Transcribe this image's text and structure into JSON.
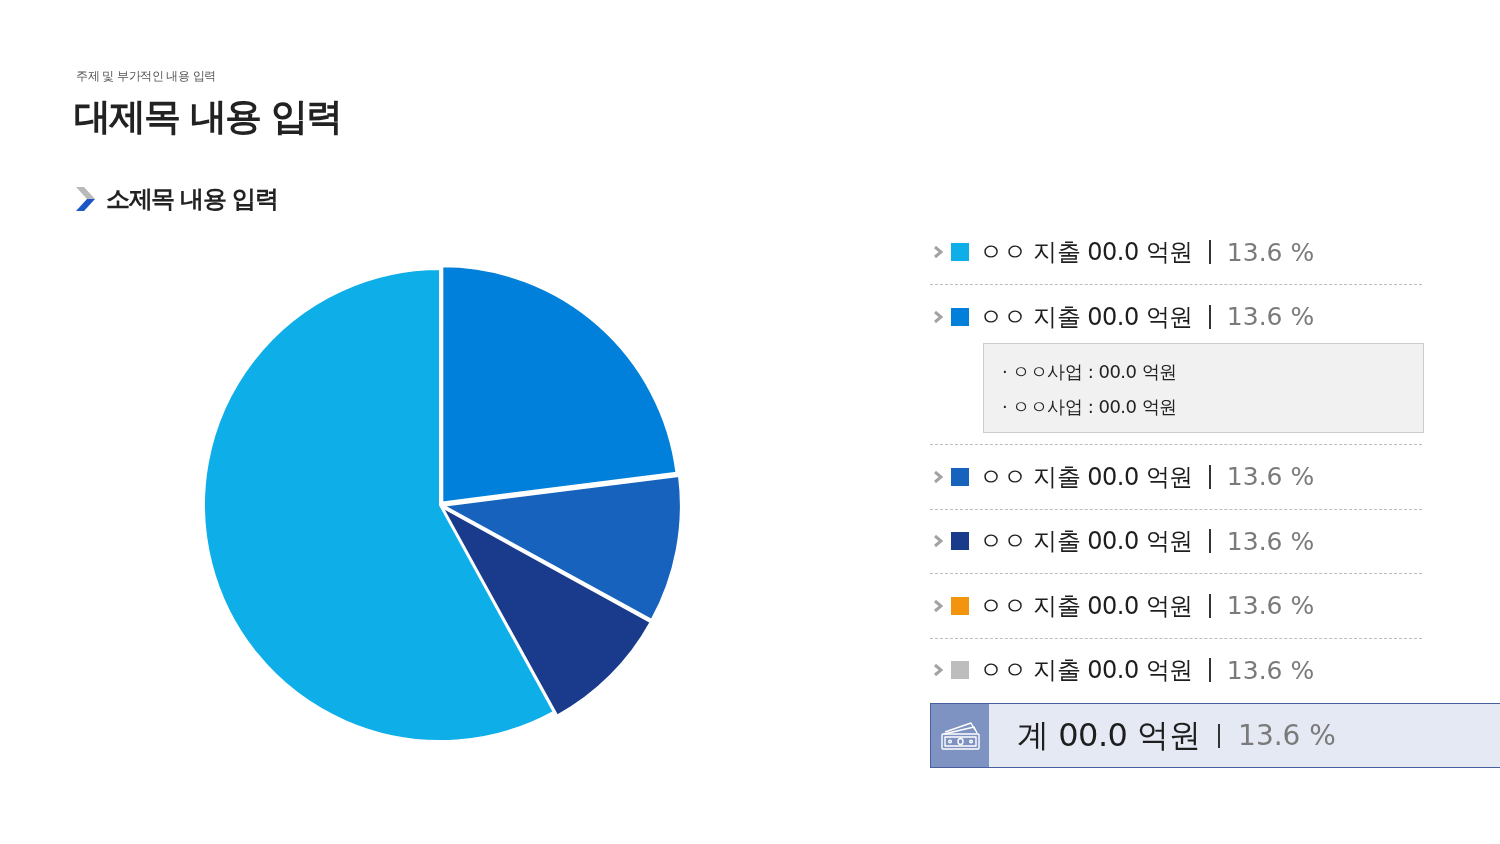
{
  "chart_data": {
    "type": "pie",
    "title": "대제목 내용 입력",
    "subtitle": "소제목 내용 입력",
    "categories": [
      "ㅇㅇ 지출 00.0 억원",
      "ㅇㅇ 지출 00.0 억원",
      "ㅇㅇ 지출 00.0 억원",
      "ㅇㅇ 지출 00.0 억원",
      "ㅇㅇ 지출 00.0 억원",
      "ㅇㅇ 지출 00.0 억원"
    ],
    "values": [
      58,
      23,
      10,
      9,
      0,
      0
    ],
    "colors": [
      "#0eaee8",
      "#0080da",
      "#1662bc",
      "#1a3a8c",
      "#f2940e",
      "#bdbdbd"
    ],
    "legend": "right",
    "annotations": [
      "주제 및 부가적인 내용 입력",
      "· ㅇㅇ사업 : 00.0 억원",
      "· ㅇㅇ사업 : 00.0 억원",
      "계 00.0 억원",
      "13.6 %",
      "13.6 %",
      "13.6 %",
      "13.6 %",
      "13.6 %",
      "13.6 %",
      "13.6 %"
    ]
  }
}
